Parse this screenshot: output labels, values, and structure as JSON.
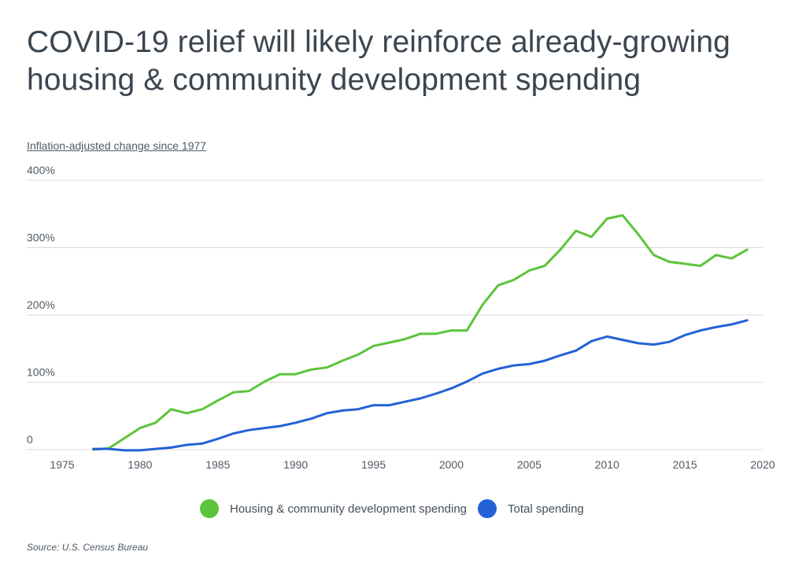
{
  "header": {
    "title": "COVID-19 relief will likely reinforce already-growing housing & community development spending",
    "subtitle": "Inflation-adjusted change since 1977"
  },
  "footer": {
    "source": "Source:  U.S. Census Bureau"
  },
  "colors": {
    "housing": "#5cc43a",
    "total": "#2461d6",
    "grid": "#d9d9d9"
  },
  "chart_data": {
    "type": "line",
    "title": "COVID-19 relief will likely reinforce already-growing housing & community development spending",
    "subtitle": "Inflation-adjusted change since 1977",
    "xlabel": "",
    "ylabel": "Inflation-adjusted change since 1977",
    "xlim": [
      1975,
      2020
    ],
    "ylim": [
      0,
      400
    ],
    "x_ticks": [
      "1975",
      "1980",
      "1985",
      "1990",
      "1995",
      "2000",
      "2005",
      "2010",
      "2015",
      "2020"
    ],
    "y_ticks": [
      "0",
      "100%",
      "200%",
      "300%",
      "400%"
    ],
    "grid": true,
    "legend_position": "bottom-center",
    "x": [
      1977,
      1978,
      1979,
      1980,
      1981,
      1982,
      1983,
      1984,
      1985,
      1986,
      1987,
      1988,
      1989,
      1990,
      1991,
      1992,
      1993,
      1994,
      1995,
      1996,
      1997,
      1998,
      1999,
      2000,
      2001,
      2002,
      2003,
      2004,
      2005,
      2006,
      2007,
      2008,
      2009,
      2010,
      2011,
      2012,
      2013,
      2014,
      2015,
      2016,
      2017,
      2018,
      2019
    ],
    "series": [
      {
        "name": "Housing & community development spending",
        "color": "#5cc43a",
        "values": [
          0,
          2,
          17,
          32,
          40,
          60,
          54,
          60,
          73,
          85,
          87,
          101,
          112,
          112,
          119,
          122,
          132,
          141,
          154,
          159,
          164,
          172,
          172,
          177,
          177,
          215,
          244,
          252,
          266,
          273,
          297,
          325,
          316,
          343,
          348,
          320,
          289,
          279,
          276,
          273,
          289,
          284,
          297
        ]
      },
      {
        "name": "Total spending",
        "color": "#2461d6",
        "values": [
          1,
          1,
          -1,
          -1,
          1,
          3,
          7,
          9,
          16,
          24,
          29,
          32,
          35,
          40,
          46,
          54,
          58,
          60,
          66,
          66,
          71,
          76,
          83,
          91,
          101,
          113,
          120,
          125,
          127,
          132,
          140,
          147,
          161,
          168,
          163,
          158,
          156,
          160,
          170,
          177,
          182,
          186,
          192
        ]
      }
    ]
  }
}
